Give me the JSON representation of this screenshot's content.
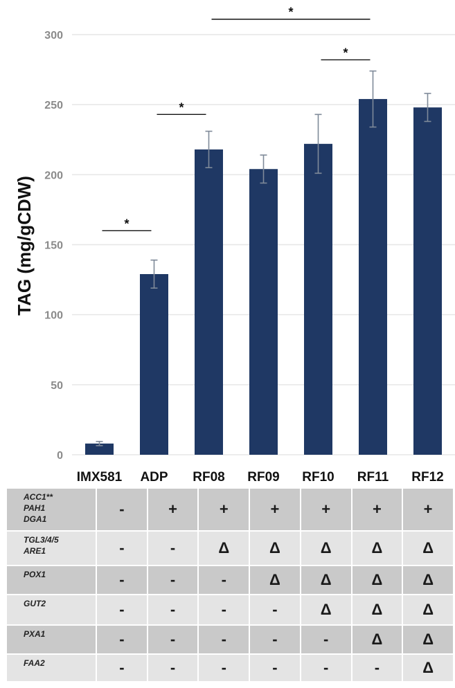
{
  "chart_data": {
    "type": "bar",
    "ylabel": "TAG (mg/gCDW)",
    "xlabel": "",
    "ylim": [
      0,
      300
    ],
    "yticks": [
      0,
      50,
      100,
      150,
      200,
      250,
      300
    ],
    "grid": true,
    "categories": [
      "IMX581",
      "ADP",
      "RF08",
      "RF09",
      "RF10",
      "RF11",
      "RF12"
    ],
    "values": [
      8,
      129,
      218,
      204,
      222,
      254,
      248
    ],
    "errors": [
      1.5,
      10,
      13,
      10,
      21,
      20,
      10
    ],
    "bar_color": "#1f3864",
    "error_color": "#7f8a99",
    "significance": [
      {
        "from": 0,
        "to": 1,
        "y": 160,
        "label": "*"
      },
      {
        "from": 1,
        "to": 2,
        "y": 243,
        "label": "*"
      },
      {
        "from": 2,
        "to": 5,
        "y": 311,
        "label": "*"
      },
      {
        "from": 4,
        "to": 5,
        "y": 282,
        "label": "*"
      }
    ]
  },
  "genotype_table": {
    "rows": [
      {
        "genes": [
          "ACC1**",
          "PAH1",
          "DGA1"
        ],
        "marks": [
          "-",
          "+",
          "+",
          "+",
          "+",
          "+",
          "+"
        ]
      },
      {
        "genes": [
          "TGL3/4/5",
          "ARE1"
        ],
        "marks": [
          "-",
          "-",
          "Δ",
          "Δ",
          "Δ",
          "Δ",
          "Δ"
        ]
      },
      {
        "genes": [
          "POX1"
        ],
        "marks": [
          "-",
          "-",
          "-",
          "Δ",
          "Δ",
          "Δ",
          "Δ"
        ]
      },
      {
        "genes": [
          "GUT2"
        ],
        "marks": [
          "-",
          "-",
          "-",
          "-",
          "Δ",
          "Δ",
          "Δ"
        ]
      },
      {
        "genes": [
          "PXA1"
        ],
        "marks": [
          "-",
          "-",
          "-",
          "-",
          "-",
          "Δ",
          "Δ"
        ]
      },
      {
        "genes": [
          "FAA2"
        ],
        "marks": [
          "-",
          "-",
          "-",
          "-",
          "-",
          "-",
          "Δ"
        ]
      }
    ]
  }
}
